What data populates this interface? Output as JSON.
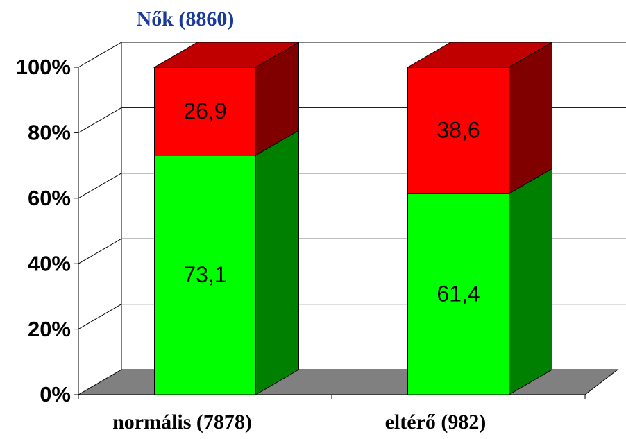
{
  "chart_data": {
    "type": "bar3d_stacked",
    "title": "Nők (8860)",
    "categories": [
      "normális (7878)",
      "eltérő (982)"
    ],
    "series": [
      {
        "color": "#00ff00",
        "values": [
          73.1,
          61.4
        ],
        "value_labels": [
          "73,1",
          "61,4"
        ]
      },
      {
        "color": "#ff0000",
        "values": [
          26.9,
          38.6
        ],
        "value_labels": [
          "26,9",
          "38,6"
        ]
      }
    ],
    "ylim": [
      0,
      100
    ],
    "yticks": [
      {
        "value": 0,
        "label": "0%"
      },
      {
        "value": 20,
        "label": "20%"
      },
      {
        "value": 40,
        "label": "40%"
      },
      {
        "value": 60,
        "label": "60%"
      },
      {
        "value": 80,
        "label": "80%"
      },
      {
        "value": 100,
        "label": "100%"
      }
    ],
    "grid": true
  }
}
